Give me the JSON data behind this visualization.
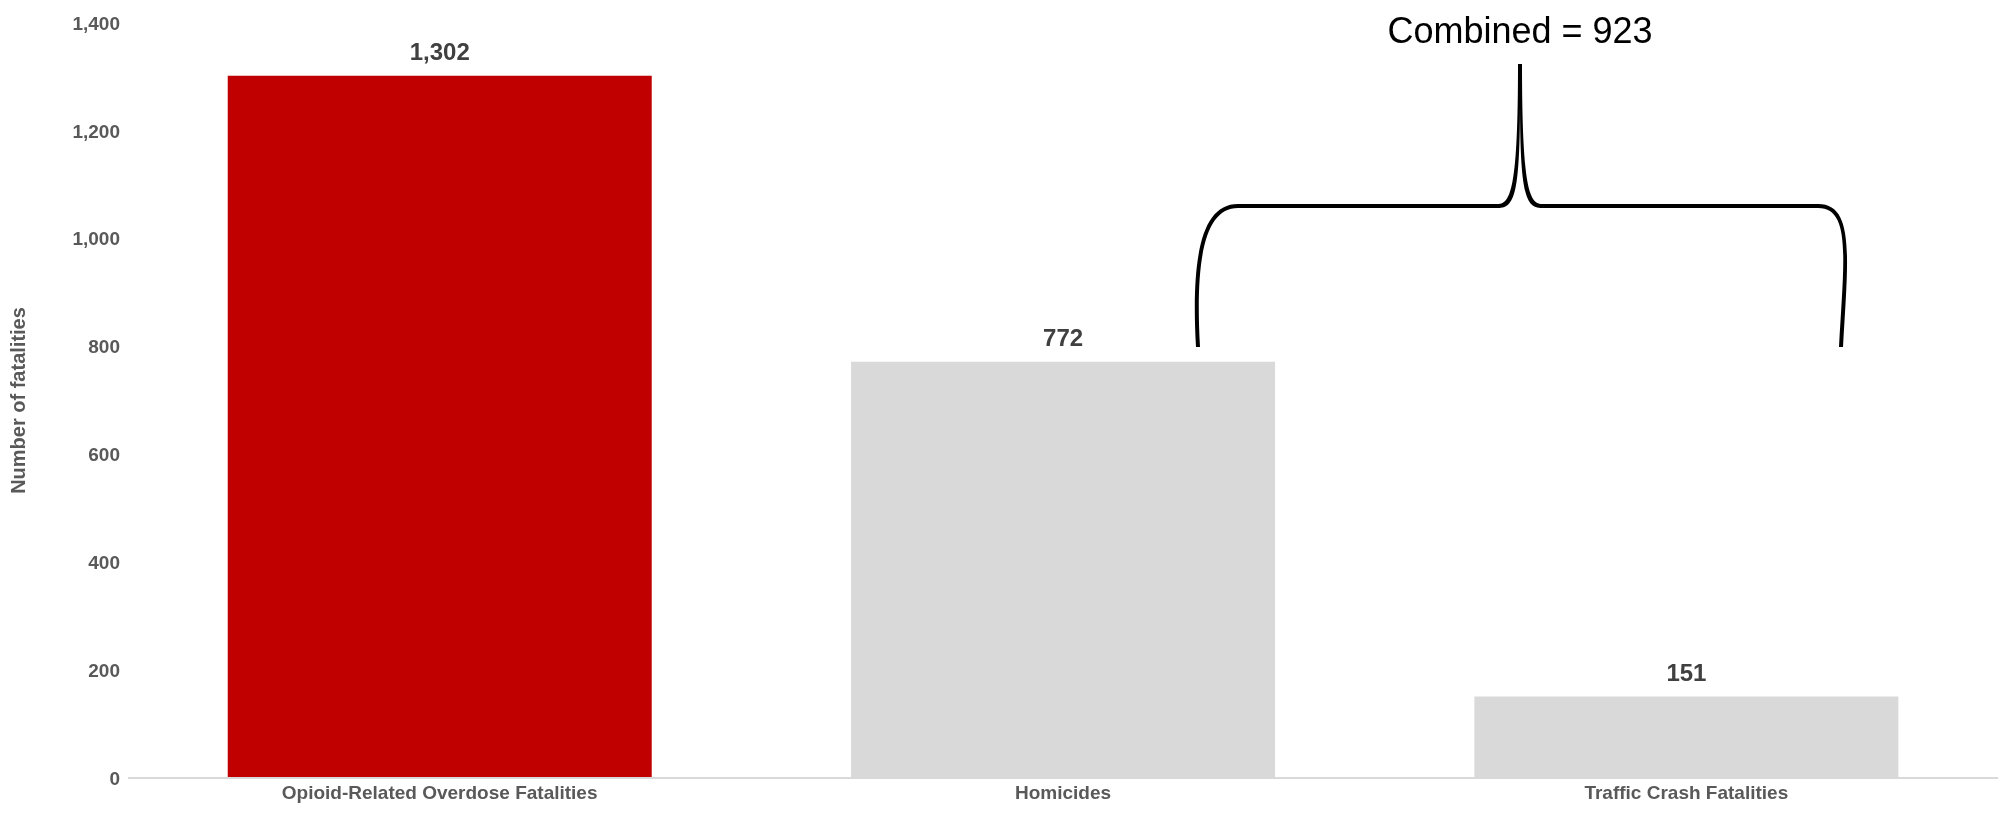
{
  "chart_data": {
    "type": "bar",
    "ylabel": "Number of fatalities",
    "categories": [
      "Opioid-Related Overdose Fatalities",
      "Homicides",
      "Traffic Crash Fatalities"
    ],
    "values": [
      1302,
      772,
      151
    ],
    "colors": [
      "#c00000",
      "#d9d9d9",
      "#d9d9d9"
    ],
    "value_labels": [
      "1,302",
      "772",
      "151"
    ],
    "ylim": [
      0,
      1400
    ],
    "yticks": [
      0,
      200,
      400,
      600,
      800,
      {
        "value": 1000,
        "label": "1,000"
      },
      {
        "value": 1200,
        "label": "1,200"
      },
      {
        "value": 1400,
        "label": "1,400"
      }
    ],
    "grid": false,
    "annotations": [
      "Combined = 923"
    ]
  }
}
